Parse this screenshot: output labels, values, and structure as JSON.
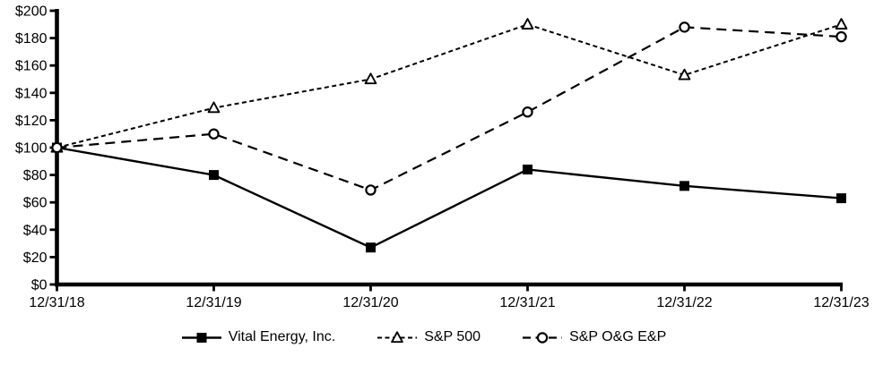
{
  "chart_data": {
    "type": "line",
    "title": "",
    "xlabel": "",
    "ylabel": "",
    "categories": [
      "12/31/18",
      "12/31/19",
      "12/31/20",
      "12/31/21",
      "12/31/22",
      "12/31/23"
    ],
    "series": [
      {
        "id": "vital-energy",
        "name": "Vital Energy, Inc.",
        "values": [
          100,
          80,
          27,
          84,
          72,
          63
        ],
        "line": "solid",
        "marker": "square-filled"
      },
      {
        "id": "sp-500",
        "name": "S&P 500",
        "values": [
          100,
          129,
          150,
          190,
          153,
          190
        ],
        "line": "dashed-short",
        "marker": "triangle-open"
      },
      {
        "id": "sp-og-ep",
        "name": "S&P O&G E&P",
        "values": [
          100,
          110,
          69,
          126,
          188,
          181
        ],
        "line": "dashed-long",
        "marker": "circle-open"
      }
    ],
    "ylim": [
      0,
      200
    ],
    "ytick_step": 20,
    "ytick_labels": [
      "$0",
      "$20",
      "$40",
      "$60",
      "$80",
      "$100",
      "$120",
      "$140",
      "$160",
      "$180",
      "$200"
    ],
    "grid": false,
    "legend_position": "bottom",
    "colors": {
      "foreground": "#000000",
      "marker_fill_open": "#ffffff",
      "background": "#ffffff"
    }
  }
}
